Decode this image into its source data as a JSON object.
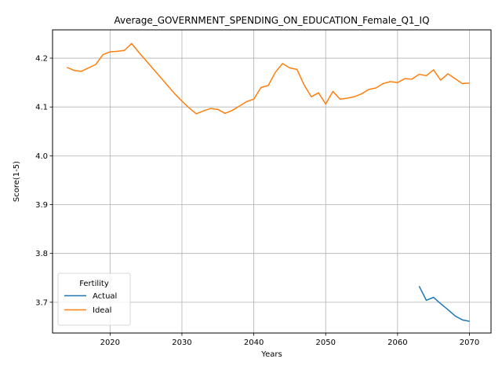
{
  "chart_data": {
    "type": "line",
    "title": "Average_GOVERNMENT_SPENDING_ON_EDUCATION_Female_Q1_IQ",
    "xlabel": "Years",
    "ylabel": "Score(1-5)",
    "xlim": [
      2012,
      2073
    ],
    "ylim": [
      3.637,
      4.258
    ],
    "xticks": [
      2020,
      2030,
      2040,
      2050,
      2060,
      2070
    ],
    "yticks": [
      3.7,
      3.8,
      3.9,
      4.0,
      4.1,
      4.2
    ],
    "xtick_labels": [
      "2020",
      "2030",
      "2040",
      "2050",
      "2060",
      "2070"
    ],
    "ytick_labels": [
      "3.7",
      "3.8",
      "3.9",
      "4.0",
      "4.1",
      "4.2"
    ],
    "grid": true,
    "legend": {
      "title": "Fertility",
      "placement": "lower-left"
    },
    "series": [
      {
        "name": "Actual",
        "color": "#1f77b4",
        "x": [
          2063,
          2064,
          2065,
          2066,
          2067,
          2068,
          2069,
          2070
        ],
        "y": [
          3.733,
          3.704,
          3.71,
          3.697,
          3.685,
          3.672,
          3.664,
          3.661
        ]
      },
      {
        "name": "Ideal",
        "color": "#ff7f0e",
        "x": [
          2014,
          2015,
          2016,
          2017,
          2018,
          2019,
          2020,
          2021,
          2022,
          2023,
          2024,
          2025,
          2026,
          2027,
          2028,
          2029,
          2030,
          2031,
          2032,
          2033,
          2034,
          2035,
          2036,
          2037,
          2038,
          2039,
          2040,
          2041,
          2042,
          2043,
          2044,
          2045,
          2046,
          2047,
          2048,
          2049,
          2050,
          2051,
          2052,
          2053,
          2054,
          2055,
          2056,
          2057,
          2058,
          2059,
          2060,
          2061,
          2062,
          2063,
          2064,
          2065,
          2066,
          2067,
          2068,
          2069,
          2070
        ],
        "y": [
          4.181,
          4.175,
          4.173,
          4.18,
          4.187,
          4.207,
          4.213,
          4.214,
          4.216,
          4.23,
          4.212,
          4.195,
          4.178,
          4.161,
          4.144,
          4.127,
          4.112,
          4.098,
          4.086,
          4.092,
          4.097,
          4.095,
          4.087,
          4.093,
          4.102,
          4.111,
          4.116,
          4.14,
          4.144,
          4.171,
          4.189,
          4.18,
          4.177,
          4.145,
          4.121,
          4.129,
          4.106,
          4.132,
          4.116,
          4.118,
          4.121,
          4.127,
          4.136,
          4.139,
          4.148,
          4.152,
          4.15,
          4.158,
          4.157,
          4.167,
          4.164,
          4.176,
          4.155,
          4.168,
          4.158,
          4.148,
          4.149
        ]
      }
    ]
  }
}
